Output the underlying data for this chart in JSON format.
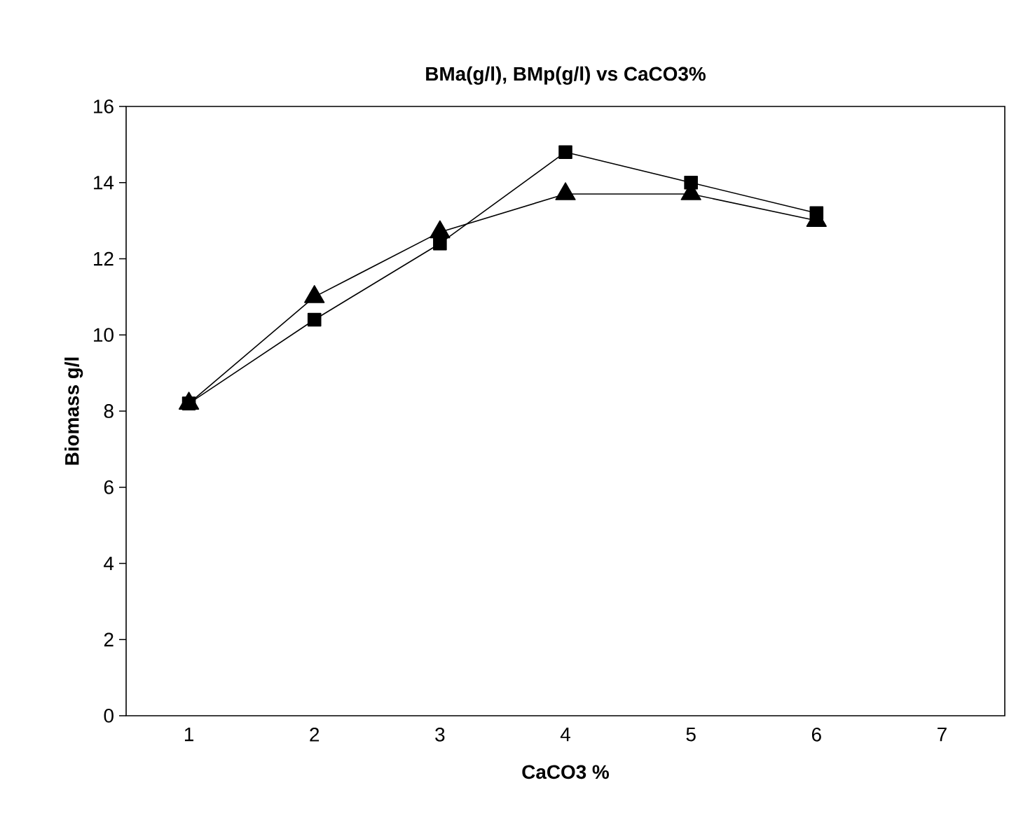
{
  "chart_data": {
    "type": "line",
    "title": "BMa(g/l), BMp(g/l) vs CaCO3%",
    "xlabel": "CaCO3 %",
    "ylabel": "Biomass g/l",
    "categories": [
      "1",
      "2",
      "3",
      "4",
      "5",
      "6",
      "7"
    ],
    "series": [
      {
        "color": "#000000",
        "marker": "triangle",
        "values": [
          8.2,
          11.0,
          12.7,
          13.7,
          13.7,
          13.0,
          null
        ]
      },
      {
        "color": "#000000",
        "marker": "square",
        "values": [
          8.2,
          10.4,
          12.4,
          14.8,
          14.0,
          13.2,
          null
        ]
      }
    ],
    "ylim": [
      0,
      16
    ],
    "yticks": [
      0,
      2,
      4,
      6,
      8,
      10,
      12,
      14,
      16
    ],
    "grid": false,
    "line_style": "solid"
  }
}
